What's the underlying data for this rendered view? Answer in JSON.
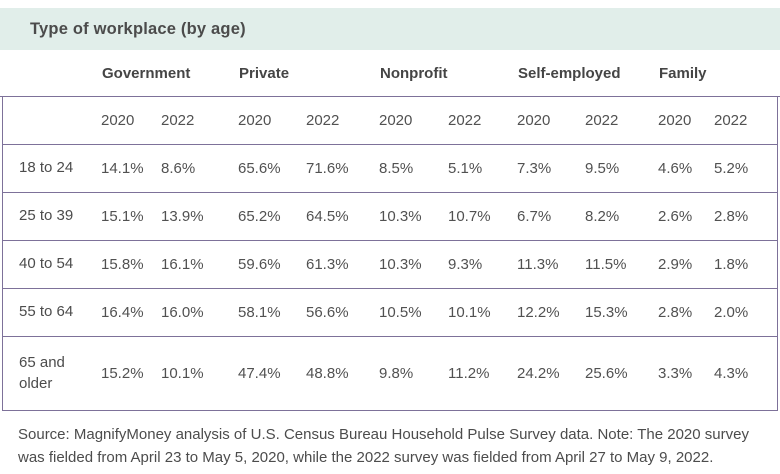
{
  "title": "Type of workplace (by age)",
  "table": {
    "categories": [
      "Government",
      "Private",
      "Nonprofit",
      "Self-employed",
      "Family"
    ],
    "years": [
      "2020",
      "2022"
    ],
    "rows": [
      {
        "age": "18 to 24",
        "values": [
          "14.1%",
          "8.6%",
          "65.6%",
          "71.6%",
          "8.5%",
          "5.1%",
          "7.3%",
          "9.5%",
          "4.6%",
          "5.2%"
        ]
      },
      {
        "age": "25 to 39",
        "values": [
          "15.1%",
          "13.9%",
          "65.2%",
          "64.5%",
          "10.3%",
          "10.7%",
          "6.7%",
          "8.2%",
          "2.6%",
          "2.8%"
        ]
      },
      {
        "age": "40 to 54",
        "values": [
          "15.8%",
          "16.1%",
          "59.6%",
          "61.3%",
          "10.3%",
          "9.3%",
          "11.3%",
          "11.5%",
          "2.9%",
          "1.8%"
        ]
      },
      {
        "age": "55 to 64",
        "values": [
          "16.4%",
          "16.0%",
          "58.1%",
          "56.6%",
          "10.5%",
          "10.1%",
          "12.2%",
          "15.3%",
          "2.8%",
          "2.0%"
        ]
      },
      {
        "age": "65 and older",
        "values": [
          "15.2%",
          "10.1%",
          "47.4%",
          "48.8%",
          "9.8%",
          "11.2%",
          "24.2%",
          "25.6%",
          "3.3%",
          "4.3%"
        ]
      }
    ]
  },
  "footer": {
    "source_note": "Source: MagnifyMoney analysis of U.S. Census Bureau Household Pulse Survey data. Note: The 2020 survey was fielded from April 23 to May 5, 2020, while the 2022 survey was fielded from April 27 to May 9, 2022."
  },
  "colors": {
    "header_band": "#e1eeea",
    "divider": "#7d7199",
    "text": "#4d4d4d"
  },
  "chart_data": {
    "type": "table",
    "title": "Type of workplace (by age)",
    "unit": "%",
    "row_labels": [
      "18 to 24",
      "25 to 39",
      "40 to 54",
      "55 to 64",
      "65 and older"
    ],
    "columns": [
      "Government 2020",
      "Government 2022",
      "Private 2020",
      "Private 2022",
      "Nonprofit 2020",
      "Nonprofit 2022",
      "Self-employed 2020",
      "Self-employed 2022",
      "Family 2020",
      "Family 2022"
    ],
    "values": [
      [
        14.1,
        8.6,
        65.6,
        71.6,
        8.5,
        5.1,
        7.3,
        9.5,
        4.6,
        5.2
      ],
      [
        15.1,
        13.9,
        65.2,
        64.5,
        10.3,
        10.7,
        6.7,
        8.2,
        2.6,
        2.8
      ],
      [
        15.8,
        16.1,
        59.6,
        61.3,
        10.3,
        9.3,
        11.3,
        11.5,
        2.9,
        1.8
      ],
      [
        16.4,
        16.0,
        58.1,
        56.6,
        10.5,
        10.1,
        12.2,
        15.3,
        2.8,
        2.0
      ],
      [
        15.2,
        10.1,
        47.4,
        48.8,
        9.8,
        11.2,
        24.2,
        25.6,
        3.3,
        4.3
      ]
    ]
  }
}
